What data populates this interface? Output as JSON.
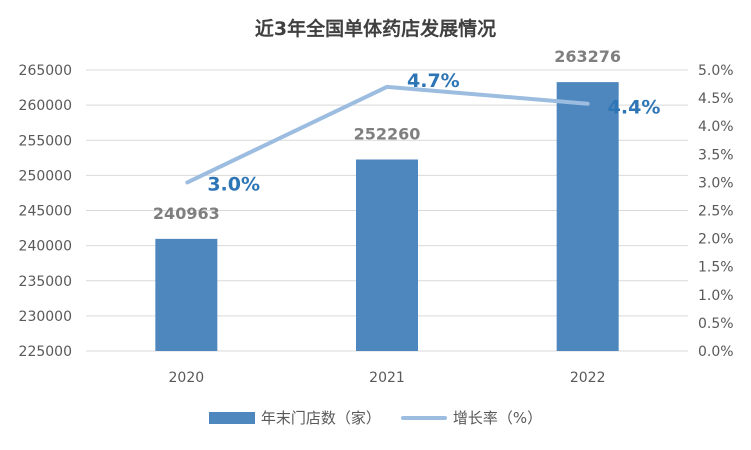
{
  "chart_data": {
    "type": "bar+line",
    "title": "近3年全国单体药店发展情况",
    "categories": [
      "2020",
      "2021",
      "2022"
    ],
    "series": [
      {
        "name": "年末门店数（家）",
        "type": "bar",
        "axis": "left",
        "values": [
          240963,
          252260,
          263276
        ],
        "labels": [
          "240963",
          "252260",
          "263276"
        ],
        "color": "#4e86be"
      },
      {
        "name": "增长率（%）",
        "type": "line",
        "axis": "right",
        "values": [
          3.0,
          4.7,
          4.4
        ],
        "labels": [
          "3.0%",
          "4.7%",
          "4.4%"
        ],
        "color": "#9cbde0"
      }
    ],
    "y_left": {
      "ylim": [
        225000,
        265000
      ],
      "ticks": [
        225000,
        230000,
        235000,
        240000,
        245000,
        250000,
        255000,
        260000,
        265000
      ],
      "tick_labels": [
        "225000",
        "230000",
        "235000",
        "240000",
        "245000",
        "250000",
        "255000",
        "260000",
        "265000"
      ]
    },
    "y_right": {
      "ylim": [
        0,
        5.0
      ],
      "ticks": [
        0,
        0.5,
        1.0,
        1.5,
        2.0,
        2.5,
        3.0,
        3.5,
        4.0,
        4.5,
        5.0
      ],
      "tick_labels": [
        "0.0%",
        "0.5%",
        "1.0%",
        "1.5%",
        "2.0%",
        "2.5%",
        "3.0%",
        "3.5%",
        "4.0%",
        "4.5%",
        "5.0%"
      ]
    },
    "grid": true,
    "legend_position": "bottom"
  },
  "colors": {
    "bar": "#4e86be",
    "line": "#9cbde0",
    "rate_label": "#2e75b6",
    "grid": "#d9d9d9"
  }
}
